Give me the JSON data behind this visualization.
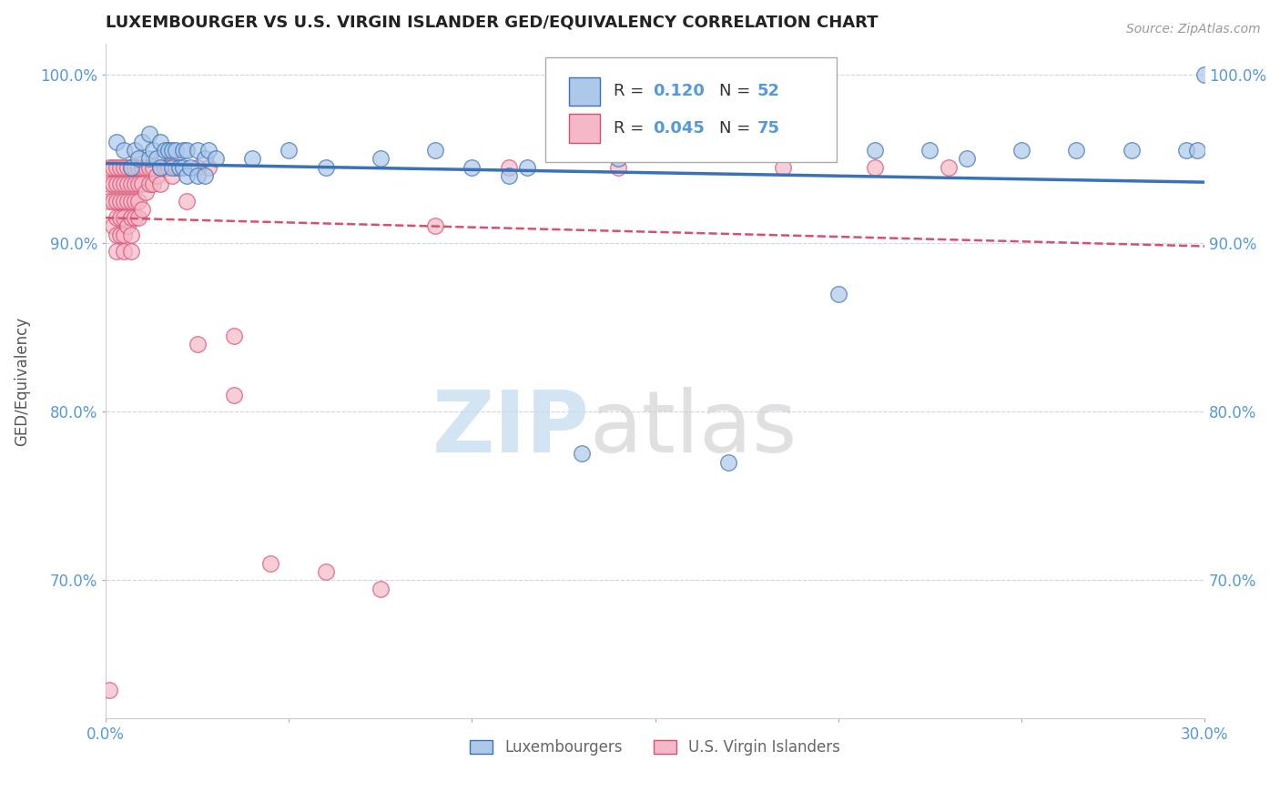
{
  "title": "LUXEMBOURGER VS U.S. VIRGIN ISLANDER GED/EQUIVALENCY CORRELATION CHART",
  "source": "Source: ZipAtlas.com",
  "ylabel": "GED/Equivalency",
  "x_min": 0.0,
  "x_max": 0.3,
  "y_min": 0.618,
  "y_max": 1.018,
  "x_ticks": [
    0.0,
    0.05,
    0.1,
    0.15,
    0.2,
    0.25,
    0.3
  ],
  "x_tick_labels_show": [
    "0.0%",
    "",
    "",
    "",
    "",
    "",
    "30.0%"
  ],
  "y_ticks": [
    0.7,
    0.8,
    0.9,
    1.0
  ],
  "y_tick_labels": [
    "70.0%",
    "80.0%",
    "90.0%",
    "100.0%"
  ],
  "blue_R": "0.120",
  "blue_N": "52",
  "pink_R": "0.045",
  "pink_N": "75",
  "blue_color": "#adc8e8",
  "pink_color": "#f5b8c8",
  "blue_line_color": "#3a72b8",
  "pink_line_color": "#d85070",
  "axis_color": "#5599dd",
  "grid_color": "#bbccee",
  "legend_label_blue": "Luxembourgers",
  "legend_label_pink": "U.S. Virgin Islanders",
  "blue_x": [
    0.003,
    0.005,
    0.007,
    0.008,
    0.009,
    0.01,
    0.012,
    0.012,
    0.013,
    0.014,
    0.015,
    0.015,
    0.016,
    0.017,
    0.018,
    0.018,
    0.019,
    0.02,
    0.021,
    0.021,
    0.022,
    0.022,
    0.023,
    0.025,
    0.025,
    0.027,
    0.027,
    0.028,
    0.03,
    0.04,
    0.05,
    0.06,
    0.075,
    0.09,
    0.1,
    0.115,
    0.14,
    0.155,
    0.185,
    0.21,
    0.225,
    0.235,
    0.25,
    0.265,
    0.28,
    0.295,
    0.298,
    0.3,
    0.2,
    0.17,
    0.13,
    0.11
  ],
  "blue_y": [
    0.96,
    0.955,
    0.945,
    0.955,
    0.95,
    0.96,
    0.95,
    0.965,
    0.955,
    0.95,
    0.96,
    0.945,
    0.955,
    0.955,
    0.955,
    0.945,
    0.955,
    0.945,
    0.955,
    0.945,
    0.955,
    0.94,
    0.945,
    0.955,
    0.94,
    0.95,
    0.94,
    0.955,
    0.95,
    0.95,
    0.955,
    0.945,
    0.95,
    0.955,
    0.945,
    0.945,
    0.95,
    0.955,
    0.96,
    0.955,
    0.955,
    0.95,
    0.955,
    0.955,
    0.955,
    0.955,
    0.955,
    1.0,
    0.87,
    0.77,
    0.775,
    0.94
  ],
  "pink_x": [
    0.001,
    0.001,
    0.001,
    0.002,
    0.002,
    0.002,
    0.002,
    0.003,
    0.003,
    0.003,
    0.003,
    0.003,
    0.003,
    0.004,
    0.004,
    0.004,
    0.004,
    0.004,
    0.005,
    0.005,
    0.005,
    0.005,
    0.005,
    0.005,
    0.006,
    0.006,
    0.006,
    0.006,
    0.007,
    0.007,
    0.007,
    0.007,
    0.007,
    0.007,
    0.008,
    0.008,
    0.008,
    0.008,
    0.009,
    0.009,
    0.009,
    0.009,
    0.01,
    0.01,
    0.01,
    0.011,
    0.011,
    0.012,
    0.012,
    0.013,
    0.013,
    0.014,
    0.015,
    0.015,
    0.016,
    0.017,
    0.018,
    0.019,
    0.02,
    0.022,
    0.025,
    0.028,
    0.035,
    0.045,
    0.06,
    0.075,
    0.09,
    0.11,
    0.14,
    0.185,
    0.21,
    0.23,
    0.025,
    0.035,
    0.001
  ],
  "pink_y": [
    0.945,
    0.935,
    0.925,
    0.945,
    0.935,
    0.925,
    0.91,
    0.945,
    0.935,
    0.925,
    0.915,
    0.905,
    0.895,
    0.945,
    0.935,
    0.925,
    0.915,
    0.905,
    0.945,
    0.935,
    0.925,
    0.915,
    0.905,
    0.895,
    0.945,
    0.935,
    0.925,
    0.91,
    0.945,
    0.935,
    0.925,
    0.915,
    0.905,
    0.895,
    0.945,
    0.935,
    0.925,
    0.915,
    0.945,
    0.935,
    0.925,
    0.915,
    0.945,
    0.935,
    0.92,
    0.945,
    0.93,
    0.945,
    0.935,
    0.945,
    0.935,
    0.94,
    0.945,
    0.935,
    0.945,
    0.945,
    0.94,
    0.945,
    0.945,
    0.925,
    0.945,
    0.945,
    0.845,
    0.71,
    0.705,
    0.695,
    0.91,
    0.945,
    0.945,
    0.945,
    0.945,
    0.945,
    0.84,
    0.81,
    0.635
  ]
}
